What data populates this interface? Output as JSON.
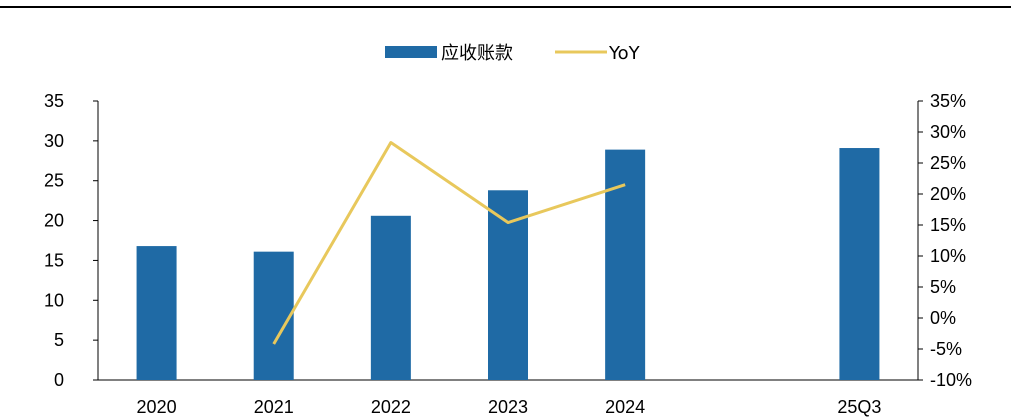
{
  "chart_data": {
    "type": "bar",
    "categories": [
      "2020",
      "2021",
      "2022",
      "2023",
      "2024",
      "",
      "25Q3"
    ],
    "series": [
      {
        "name": "应收账款",
        "type": "bar",
        "axis": "left",
        "color": "#1f6aa5",
        "values": [
          16.8,
          16.1,
          20.6,
          23.8,
          28.9,
          null,
          29.1
        ]
      },
      {
        "name": "YoY",
        "type": "line",
        "axis": "right",
        "color": "#e8c85c",
        "values": [
          null,
          -4.2,
          28.3,
          15.4,
          21.5,
          null,
          null
        ]
      }
    ],
    "y_left": {
      "min": 0,
      "max": 35,
      "step": 5,
      "ticks": [
        "0",
        "5",
        "10",
        "15",
        "20",
        "25",
        "30",
        "35"
      ]
    },
    "y_right": {
      "min": -10,
      "max": 35,
      "step": 5,
      "ticks": [
        "-10%",
        "-5%",
        "0%",
        "5%",
        "10%",
        "15%",
        "20%",
        "25%",
        "30%",
        "35%"
      ]
    },
    "legend": {
      "position": "top-center",
      "items": [
        "应收账款",
        "YoY"
      ]
    },
    "grid": false,
    "title": "",
    "xlabel": "",
    "ylabel": ""
  }
}
